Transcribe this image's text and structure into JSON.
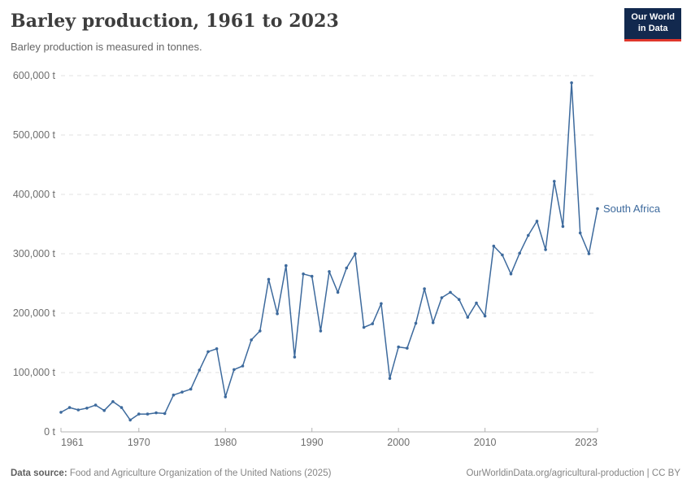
{
  "header": {
    "title": "Barley production, 1961 to 2023",
    "subtitle": "Barley production is measured in tonnes.",
    "logo": {
      "line1": "Our World",
      "line2": "in Data"
    }
  },
  "chart_data": {
    "type": "line",
    "title": "Barley production, 1961 to 2023",
    "subtitle": "Barley production is measured in tonnes.",
    "ylabel": "tonnes",
    "series": [
      {
        "name": "South Africa",
        "x": [
          1961,
          1962,
          1963,
          1964,
          1965,
          1966,
          1967,
          1968,
          1969,
          1970,
          1971,
          1972,
          1973,
          1974,
          1975,
          1976,
          1977,
          1978,
          1979,
          1980,
          1981,
          1982,
          1983,
          1984,
          1985,
          1986,
          1987,
          1988,
          1989,
          1990,
          1991,
          1992,
          1993,
          1994,
          1995,
          1996,
          1997,
          1998,
          1999,
          2000,
          2001,
          2002,
          2003,
          2004,
          2005,
          2006,
          2007,
          2008,
          2009,
          2010,
          2011,
          2012,
          2013,
          2014,
          2015,
          2016,
          2017,
          2018,
          2019,
          2020,
          2021,
          2022,
          2023
        ],
        "values": [
          33000,
          41000,
          37000,
          40000,
          45000,
          36000,
          51000,
          41000,
          20000,
          30000,
          30000,
          32000,
          31000,
          62000,
          67000,
          72000,
          104000,
          135000,
          140000,
          59000,
          105000,
          111000,
          155000,
          170000,
          257000,
          199000,
          280000,
          126000,
          266000,
          262000,
          170000,
          270000,
          235000,
          276000,
          300000,
          176000,
          182000,
          216000,
          90000,
          143000,
          141000,
          183000,
          241000,
          184000,
          226000,
          235000,
          223000,
          193000,
          217000,
          195000,
          313000,
          298000,
          266000,
          301000,
          331000,
          355000,
          307000,
          422000,
          346000,
          588000,
          335000,
          300000,
          376000
        ]
      }
    ],
    "series_label": "South Africa",
    "xlim": [
      1961,
      2023
    ],
    "ylim": [
      0,
      600000
    ],
    "x_ticks": [
      {
        "value": 1961,
        "label": "1961",
        "anchor": "start"
      },
      {
        "value": 1970,
        "label": "1970",
        "anchor": "middle"
      },
      {
        "value": 1980,
        "label": "1980",
        "anchor": "middle"
      },
      {
        "value": 1990,
        "label": "1990",
        "anchor": "middle"
      },
      {
        "value": 2000,
        "label": "2000",
        "anchor": "middle"
      },
      {
        "value": 2010,
        "label": "2010",
        "anchor": "middle"
      },
      {
        "value": 2023,
        "label": "2023",
        "anchor": "end"
      }
    ],
    "y_ticks": [
      {
        "value": 0,
        "label": "0 t"
      },
      {
        "value": 100000,
        "label": "100,000 t"
      },
      {
        "value": 200000,
        "label": "200,000 t"
      },
      {
        "value": 300000,
        "label": "300,000 t"
      },
      {
        "value": 400000,
        "label": "400,000 t"
      },
      {
        "value": 500000,
        "label": "500,000 t"
      },
      {
        "value": 600000,
        "label": "600,000 t"
      }
    ],
    "grid": "horizontal-dashed",
    "legend_position": "end-of-line-label"
  },
  "colors": {
    "line": "#3d6a9d",
    "series_label": "#3d6a9d",
    "grid": "#e0e0e0",
    "axis": "#b3b3b3",
    "axis_text": "#6e6e6e",
    "title": "#3d3d3d",
    "subtitle": "#666666",
    "logo_bg": "#12294e",
    "logo_red": "#e0372c"
  },
  "footer": {
    "source_prefix": "Data source:",
    "source_text": " Food and Agriculture Organization of the United Nations (2025)",
    "credit": "OurWorldinData.org/agricultural-production | CC BY"
  }
}
